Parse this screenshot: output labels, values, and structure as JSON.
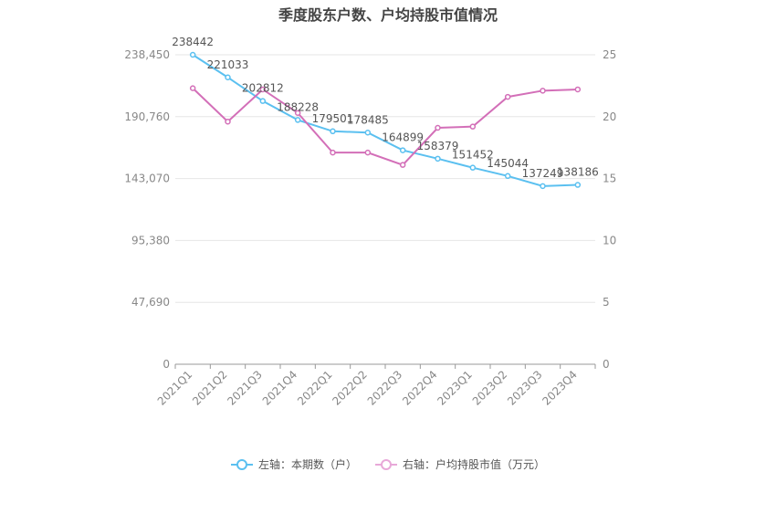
{
  "chart_data": {
    "type": "line",
    "title": "季度股东户数、户均持股市值情况",
    "categories": [
      "2021Q1",
      "2021Q2",
      "2021Q3",
      "2021Q4",
      "2022Q1",
      "2022Q2",
      "2022Q3",
      "2022Q4",
      "2023Q1",
      "2023Q2",
      "2023Q3",
      "2023Q4"
    ],
    "left_axis": {
      "ticks": [
        "0",
        "47,690",
        "95,380",
        "143,070",
        "190,760",
        "238,450"
      ],
      "min": 0,
      "max": 238450
    },
    "right_axis": {
      "ticks": [
        "0",
        "5",
        "10",
        "15",
        "20",
        "25"
      ],
      "min": 0,
      "max": 25
    },
    "series": [
      {
        "name": "左轴：本期数（户）",
        "axis": "left",
        "color": "#5bc0f0",
        "values": [
          238442,
          221033,
          202812,
          188228,
          179501,
          178485,
          164899,
          158379,
          151452,
          145044,
          137249,
          138186
        ],
        "labels": [
          "238442",
          "221033",
          "202812",
          "188228",
          "179501",
          "178485",
          "164899",
          "158379",
          "151452",
          "145044",
          "137249",
          "138186"
        ]
      },
      {
        "name": "右轴：户均持股市值（万元）",
        "axis": "right",
        "color": "#d36fb8",
        "values": [
          22.3,
          19.6,
          22.2,
          20.3,
          17.1,
          17.1,
          16.1,
          19.1,
          19.2,
          21.6,
          22.1,
          22.2
        ]
      }
    ],
    "grid": true,
    "legend_position": "bottom-center"
  }
}
